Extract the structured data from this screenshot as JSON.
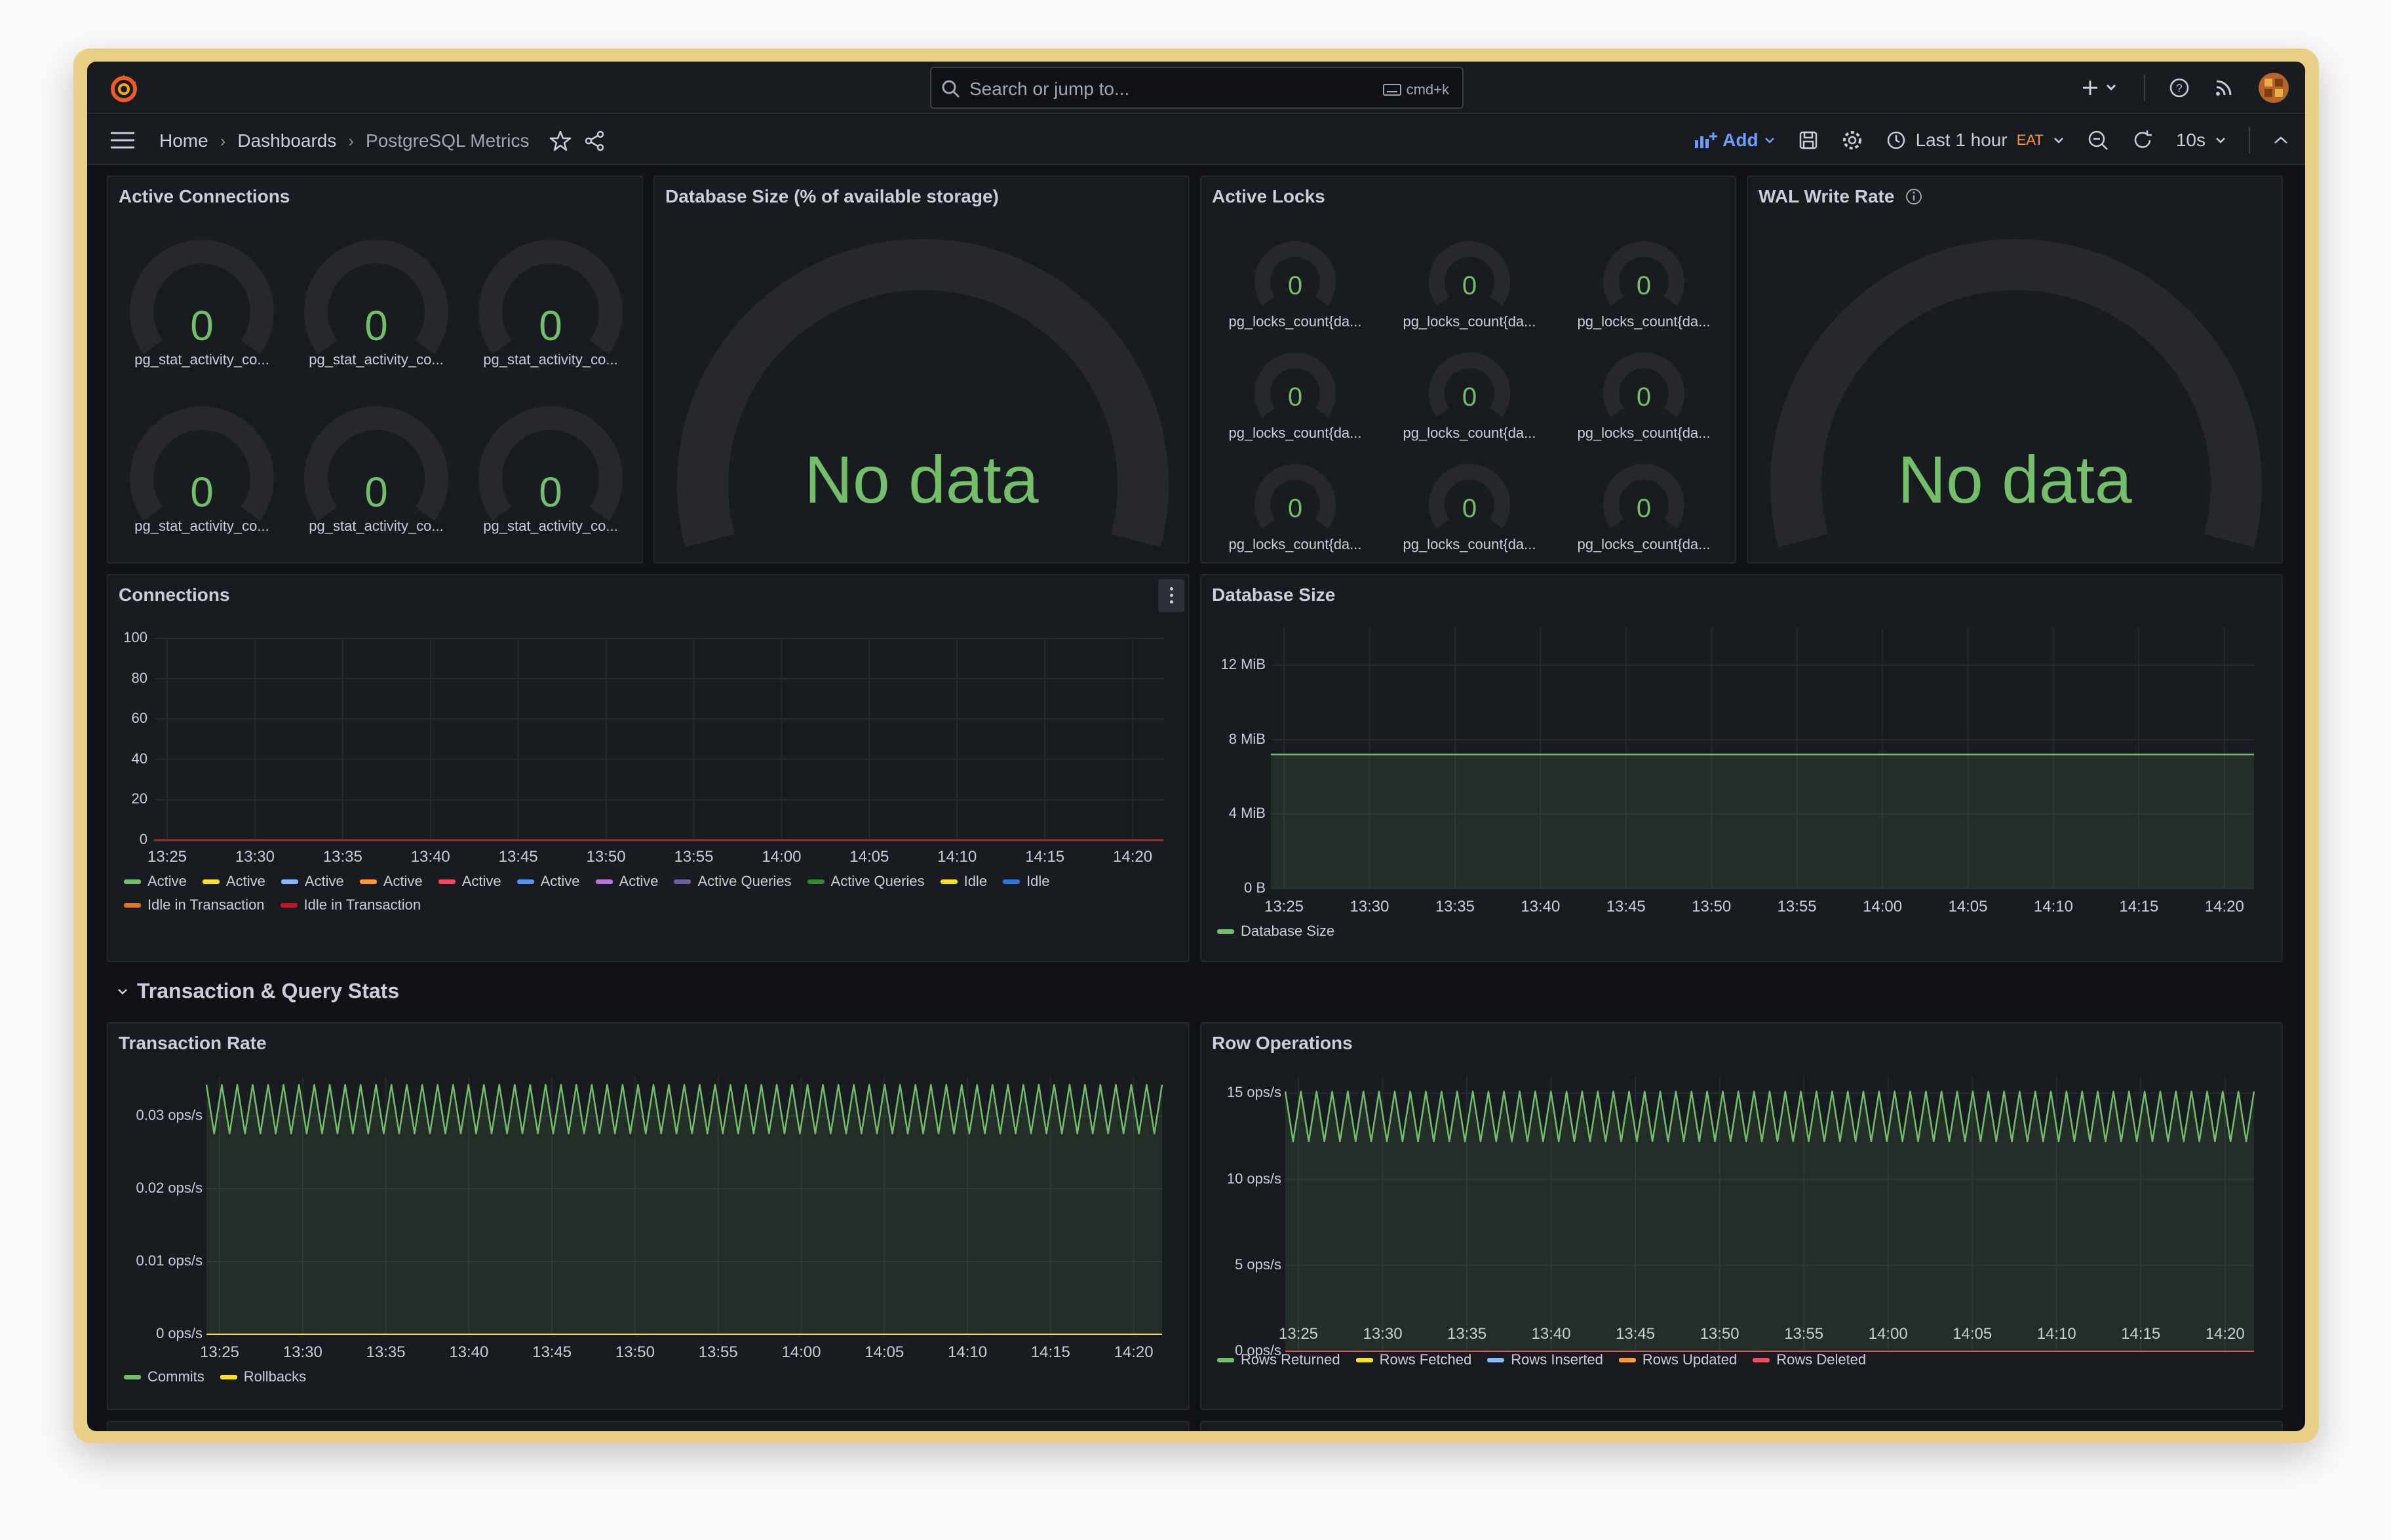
{
  "search": {
    "placeholder": "Search or jump to...",
    "shortcut": "cmd+k"
  },
  "breadcrumb": {
    "home": "Home",
    "dashboards": "Dashboards",
    "current": "PostgreSQL Metrics"
  },
  "toolbar": {
    "add_label": "Add",
    "time_range": "Last 1 hour",
    "timezone": "EAT",
    "refresh_interval": "10s"
  },
  "colors": {
    "accent": "#6e9fff",
    "green": "#73bf69",
    "yellow": "#fade2a",
    "blue": "#8ab8ff",
    "orange": "#ff9830",
    "red": "#f2495c",
    "purple": "#b877d9"
  },
  "panels": {
    "active_connections": {
      "title": "Active Connections",
      "gauges": [
        {
          "value": "0",
          "label": "pg_stat_activity_co..."
        },
        {
          "value": "0",
          "label": "pg_stat_activity_co..."
        },
        {
          "value": "0",
          "label": "pg_stat_activity_co..."
        },
        {
          "value": "0",
          "label": "pg_stat_activity_co..."
        },
        {
          "value": "0",
          "label": "pg_stat_activity_co..."
        },
        {
          "value": "0",
          "label": "pg_stat_activity_co..."
        }
      ]
    },
    "database_size_pct": {
      "title": "Database Size (% of available storage)",
      "no_data": "No data"
    },
    "active_locks": {
      "title": "Active Locks",
      "gauges": [
        {
          "value": "0",
          "label": "pg_locks_count{da..."
        },
        {
          "value": "0",
          "label": "pg_locks_count{da..."
        },
        {
          "value": "0",
          "label": "pg_locks_count{da..."
        },
        {
          "value": "0",
          "label": "pg_locks_count{da..."
        },
        {
          "value": "0",
          "label": "pg_locks_count{da..."
        },
        {
          "value": "0",
          "label": "pg_locks_count{da..."
        },
        {
          "value": "0",
          "label": "pg_locks_count{da..."
        },
        {
          "value": "0",
          "label": "pg_locks_count{da..."
        },
        {
          "value": "0",
          "label": "pg_locks_count{da..."
        }
      ]
    },
    "wal_write_rate": {
      "title": "WAL Write Rate",
      "no_data": "No data"
    },
    "connections": {
      "title": "Connections"
    },
    "database_size": {
      "title": "Database Size"
    },
    "transaction_rate": {
      "title": "Transaction Rate"
    },
    "row_operations": {
      "title": "Row Operations"
    }
  },
  "section": {
    "title": "Transaction & Query Stats"
  },
  "chart_data": [
    {
      "type": "line",
      "title": "Connections",
      "x": [
        "13:25",
        "13:30",
        "13:35",
        "13:40",
        "13:45",
        "13:50",
        "13:55",
        "14:00",
        "14:05",
        "14:10",
        "14:15",
        "14:20"
      ],
      "y_ticks": [
        "0",
        "20",
        "40",
        "60",
        "80",
        "100"
      ],
      "ylim": [
        0,
        100
      ],
      "grid": true,
      "legend": "bottom",
      "series": [
        {
          "name": "Active",
          "color": "#73bf69",
          "values": [
            0,
            0,
            0,
            0,
            0,
            0,
            0,
            0,
            0,
            0,
            0,
            0
          ]
        },
        {
          "name": "Active",
          "color": "#fade2a",
          "values": [
            0,
            0,
            0,
            0,
            0,
            0,
            0,
            0,
            0,
            0,
            0,
            0
          ]
        },
        {
          "name": "Active",
          "color": "#8ab8ff",
          "values": [
            0,
            0,
            0,
            0,
            0,
            0,
            0,
            0,
            0,
            0,
            0,
            0
          ]
        },
        {
          "name": "Active",
          "color": "#ff9830",
          "values": [
            0,
            0,
            0,
            0,
            0,
            0,
            0,
            0,
            0,
            0,
            0,
            0
          ]
        },
        {
          "name": "Active",
          "color": "#f2495c",
          "values": [
            0,
            0,
            0,
            0,
            0,
            0,
            0,
            0,
            0,
            0,
            0,
            0
          ]
        },
        {
          "name": "Active",
          "color": "#5794f2",
          "values": [
            0,
            0,
            0,
            0,
            0,
            0,
            0,
            0,
            0,
            0,
            0,
            0
          ]
        },
        {
          "name": "Active",
          "color": "#b877d9",
          "values": [
            0,
            0,
            0,
            0,
            0,
            0,
            0,
            0,
            0,
            0,
            0,
            0
          ]
        },
        {
          "name": "Active Queries",
          "color": "#705da0",
          "values": [
            0,
            0,
            0,
            0,
            0,
            0,
            0,
            0,
            0,
            0,
            0,
            0
          ]
        },
        {
          "name": "Active Queries",
          "color": "#37872d",
          "values": [
            0,
            0,
            0,
            0,
            0,
            0,
            0,
            0,
            0,
            0,
            0,
            0
          ]
        },
        {
          "name": "Idle",
          "color": "#fade2a",
          "values": [
            0,
            0,
            0,
            0,
            0,
            0,
            0,
            0,
            0,
            0,
            0,
            0
          ]
        },
        {
          "name": "Idle",
          "color": "#3274d9",
          "values": [
            0,
            0,
            0,
            0,
            0,
            0,
            0,
            0,
            0,
            0,
            0,
            0
          ]
        },
        {
          "name": "Idle in Transaction",
          "color": "#e0752d",
          "values": [
            0,
            0,
            0,
            0,
            0,
            0,
            0,
            0,
            0,
            0,
            0,
            0
          ]
        },
        {
          "name": "Idle in Transaction",
          "color": "#c4162a",
          "values": [
            0,
            0,
            0,
            0,
            0,
            0,
            0,
            0,
            0,
            0,
            0,
            0
          ]
        }
      ]
    },
    {
      "type": "area",
      "title": "Database Size",
      "x": [
        "13:25",
        "13:30",
        "13:35",
        "13:40",
        "13:45",
        "13:50",
        "13:55",
        "14:00",
        "14:05",
        "14:10",
        "14:15",
        "14:20"
      ],
      "y_ticks": [
        "0 B",
        "4 MiB",
        "8 MiB",
        "12 MiB"
      ],
      "ylim": [
        0,
        14
      ],
      "unit": "MiB",
      "grid": true,
      "legend": "bottom",
      "series": [
        {
          "name": "Database Size",
          "color": "#73bf69",
          "values": [
            7.2,
            7.2,
            7.2,
            7.2,
            7.2,
            7.2,
            7.2,
            7.2,
            7.2,
            7.2,
            7.2,
            7.2
          ]
        }
      ]
    },
    {
      "type": "area",
      "title": "Transaction Rate",
      "x": [
        "13:25",
        "13:30",
        "13:35",
        "13:40",
        "13:45",
        "13:50",
        "13:55",
        "14:00",
        "14:05",
        "14:10",
        "14:15",
        "14:20"
      ],
      "y_ticks": [
        "0 ops/s",
        "0.01 ops/s",
        "0.02 ops/s",
        "0.03 ops/s"
      ],
      "ylim": [
        0,
        0.0355
      ],
      "grid": true,
      "legend": "bottom",
      "oscillation": {
        "low": 0.0276,
        "high": 0.0343,
        "cycles": 62
      },
      "series": [
        {
          "name": "Commits",
          "color": "#73bf69",
          "range": [
            0.0276,
            0.0343
          ]
        },
        {
          "name": "Rollbacks",
          "color": "#fade2a",
          "values": [
            0,
            0,
            0,
            0,
            0,
            0,
            0,
            0,
            0,
            0,
            0,
            0
          ]
        }
      ]
    },
    {
      "type": "area",
      "title": "Row Operations",
      "x": [
        "13:25",
        "13:30",
        "13:35",
        "13:40",
        "13:45",
        "13:50",
        "13:55",
        "14:00",
        "14:05",
        "14:10",
        "14:15",
        "14:20"
      ],
      "y_ticks": [
        "0 ops/s",
        "5 ops/s",
        "10 ops/s",
        "15 ops/s"
      ],
      "ylim": [
        0,
        16
      ],
      "grid": true,
      "legend": "bottom",
      "oscillation": {
        "low": 12.2,
        "high": 15.1,
        "cycles": 62
      },
      "series": [
        {
          "name": "Rows Returned",
          "color": "#73bf69",
          "range": [
            12.2,
            15.1
          ]
        },
        {
          "name": "Rows Fetched",
          "color": "#fade2a",
          "values": [
            0,
            0,
            0,
            0,
            0,
            0,
            0,
            0,
            0,
            0,
            0,
            0
          ]
        },
        {
          "name": "Rows Inserted",
          "color": "#8ab8ff",
          "values": [
            0,
            0,
            0,
            0,
            0,
            0,
            0,
            0,
            0,
            0,
            0,
            0
          ]
        },
        {
          "name": "Rows Updated",
          "color": "#ff9830",
          "values": [
            0,
            0,
            0,
            0,
            0,
            0,
            0,
            0,
            0,
            0,
            0,
            0
          ]
        },
        {
          "name": "Rows Deleted",
          "color": "#f2495c",
          "values": [
            0,
            0,
            0,
            0,
            0,
            0,
            0,
            0,
            0,
            0,
            0,
            0
          ]
        }
      ]
    }
  ]
}
